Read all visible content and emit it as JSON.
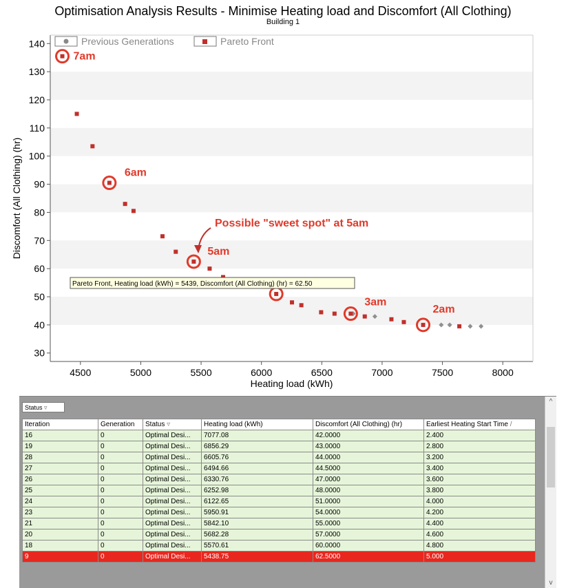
{
  "chart_data": {
    "type": "scatter",
    "title": "Optimisation Analysis Results - Minimise Heating load and Discomfort (All Clothing)",
    "subtitle": "Building 1",
    "xlabel": "Heating load (kWh)",
    "ylabel": "Discomfort (All Clothing) (hr)",
    "xlim": [
      4250,
      8250
    ],
    "ylim": [
      27,
      143
    ],
    "xticks": [
      4500,
      5000,
      5500,
      6000,
      6500,
      7000,
      7500,
      8000
    ],
    "yticks": [
      30,
      40,
      50,
      60,
      70,
      80,
      90,
      100,
      110,
      120,
      130,
      140
    ],
    "grid": "horizontal bands",
    "legend": {
      "placement": "top-left",
      "entries": [
        "Previous Generations",
        "Pareto Front"
      ]
    },
    "series": [
      {
        "name": "Pareto Front",
        "color": "#c0302b",
        "marker": "square",
        "x": [
          4350,
          4470,
          4600,
          4740,
          4870,
          4940,
          5180,
          5290,
          5439,
          5570.61,
          5682.28,
          5842.1,
          5950.91,
          6122.65,
          6252.98,
          6330.76,
          6494.66,
          6605.76,
          6740,
          6856.29,
          7077.08,
          7180,
          7340,
          7640
        ],
        "y": [
          135.5,
          115,
          103.5,
          90.5,
          83,
          80.5,
          71.5,
          66,
          62.5,
          60,
          57,
          55,
          54,
          51,
          48,
          47,
          44.5,
          44,
          44,
          43,
          42,
          41,
          40,
          39.5
        ]
      },
      {
        "name": "Previous Generations",
        "color": "#909090",
        "marker": "diamond",
        "x": [
          6760,
          6940,
          7490,
          7560,
          7730,
          7820
        ],
        "y": [
          44,
          43,
          40,
          40,
          39.5,
          39.5
        ]
      }
    ],
    "annotations": [
      {
        "label": "7am",
        "x": 4350,
        "y": 135.5
      },
      {
        "label": "6am",
        "x": 4740,
        "y": 90.5
      },
      {
        "label": "5am",
        "x": 5439,
        "y": 62.5
      },
      {
        "label": "4am",
        "x": 6122.65,
        "y": 51
      },
      {
        "label": "3am",
        "x": 6740,
        "y": 44
      },
      {
        "label": "2am",
        "x": 7340,
        "y": 40
      }
    ],
    "callout": "Possible \"sweet spot\" at 5am",
    "tooltip": "Pareto Front,  Heating load (kWh) = 5439, Discomfort (All Clothing) (hr) = 62.50"
  },
  "grid": {
    "status_filter": "Status",
    "columns": [
      "Iteration",
      "Generation",
      "Status",
      "Heating load (kWh)",
      "Discomfort (All Clothing) (hr)",
      "Earliest Heating Start Time"
    ],
    "rows": [
      [
        "16",
        "0",
        "Optimal Desi...",
        "7077.08",
        "42.0000",
        "2.400"
      ],
      [
        "19",
        "0",
        "Optimal Desi...",
        "6856.29",
        "43.0000",
        "2.800"
      ],
      [
        "28",
        "0",
        "Optimal Desi...",
        "6605.76",
        "44.0000",
        "3.200"
      ],
      [
        "27",
        "0",
        "Optimal Desi...",
        "6494.66",
        "44.5000",
        "3.400"
      ],
      [
        "26",
        "0",
        "Optimal Desi...",
        "6330.76",
        "47.0000",
        "3.600"
      ],
      [
        "25",
        "0",
        "Optimal Desi...",
        "6252.98",
        "48.0000",
        "3.800"
      ],
      [
        "24",
        "0",
        "Optimal Desi...",
        "6122.65",
        "51.0000",
        "4.000"
      ],
      [
        "23",
        "0",
        "Optimal Desi...",
        "5950.91",
        "54.0000",
        "4.200"
      ],
      [
        "21",
        "0",
        "Optimal Desi...",
        "5842.10",
        "55.0000",
        "4.400"
      ],
      [
        "20",
        "0",
        "Optimal Desi...",
        "5682.28",
        "57.0000",
        "4.600"
      ],
      [
        "18",
        "0",
        "Optimal Desi...",
        "5570.61",
        "60.0000",
        "4.800"
      ],
      [
        "9",
        "0",
        "Optimal Desi...",
        "5438.75",
        "62.5000",
        "5.000"
      ]
    ],
    "selected_row": 11
  }
}
